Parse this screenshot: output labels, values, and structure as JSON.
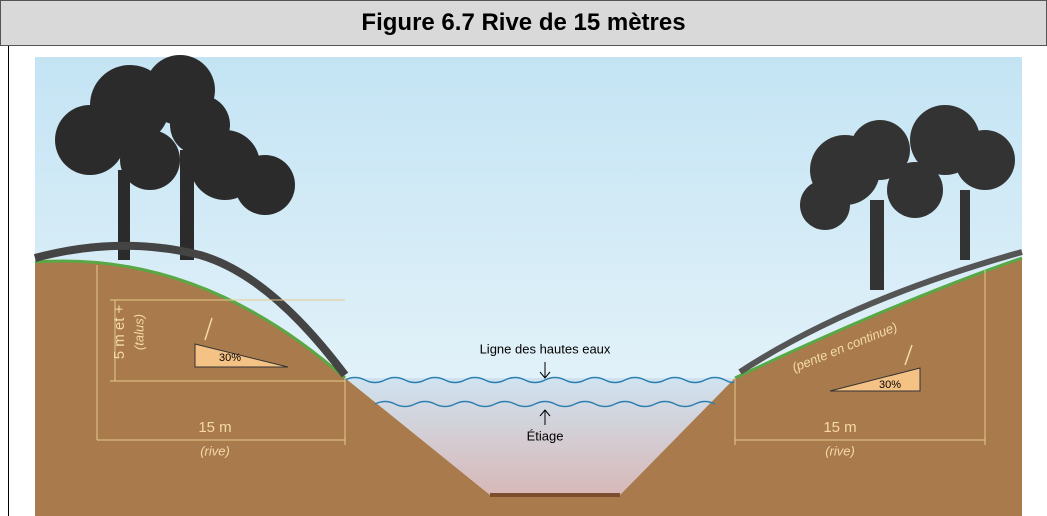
{
  "header": {
    "title": "Figure 6.7 Rive de 15 mètres"
  },
  "figure": {
    "left_bank": {
      "height_label": "5 m et +",
      "height_note": "(talus)",
      "slope_label": "30%",
      "width_label": "15 m",
      "width_note": "(rive)"
    },
    "water": {
      "high_water_label": "Ligne des hautes eaux",
      "low_water_label": "Étiage"
    },
    "right_bank": {
      "slope_note": "(pente en continue)",
      "slope_label": "30%",
      "width_label": "15 m",
      "width_note": "(rive)"
    }
  }
}
